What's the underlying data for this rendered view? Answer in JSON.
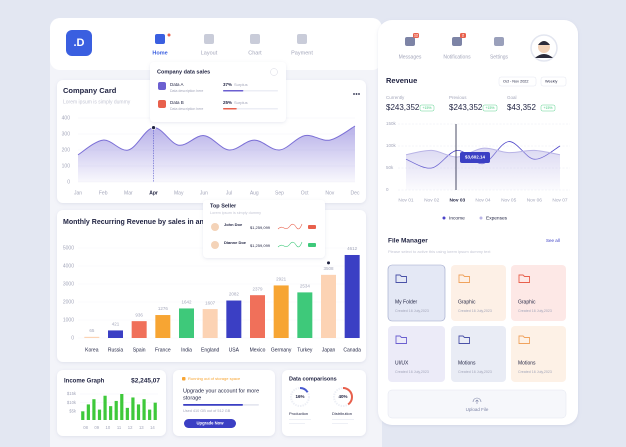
{
  "logo": ".D",
  "nav": [
    "Home",
    "Layout",
    "Chart",
    "Payment"
  ],
  "company_card": {
    "title": "Company Card",
    "subtitle": "Lorem ipsum is simply dummy",
    "chart": {
      "type": "area",
      "categories": [
        "Jan",
        "Feb",
        "Mar",
        "Apr",
        "May",
        "Jun",
        "Jul",
        "Aug",
        "Sep",
        "Oct",
        "Nov",
        "Dec"
      ],
      "values": [
        170,
        262,
        200,
        340,
        230,
        290,
        200,
        262,
        200,
        290,
        262,
        350
      ],
      "color": "#7b6fd6",
      "ylim": [
        0,
        400
      ],
      "yticks": [
        0,
        100,
        200,
        300,
        400
      ]
    }
  },
  "company_data_sales": {
    "title": "Company data sales",
    "items": [
      {
        "name": "Data A",
        "description": "Data description here",
        "value": 37,
        "value_label": "37%",
        "note": "Surplus",
        "color": "#6b5fd0"
      },
      {
        "name": "Data B",
        "description": "Data description here",
        "value": 25,
        "value_label": "25%",
        "note": "Surplus",
        "color": "#e8604c"
      }
    ]
  },
  "mrr": {
    "title": "Monthly Recurring Revenue by sales in any",
    "chart": {
      "type": "bar",
      "categories": [
        "Korea",
        "Russia",
        "Spain",
        "France",
        "India",
        "England",
        "USA",
        "Mexico",
        "Germany",
        "Turkey",
        "Japan",
        "Canada"
      ],
      "values": [
        65,
        421,
        936,
        1276,
        1642,
        1607,
        2082,
        2379,
        2921,
        2534,
        3508,
        4612
      ],
      "colors": [
        "#fcd3b4",
        "#3b3fc4",
        "#f0705a",
        "#f7a533",
        "#3ec97a",
        "#fcd3b4",
        "#3b3fc4",
        "#f0705a",
        "#f7a533",
        "#3ec97a",
        "#fcd3b4",
        "#3b3fc4"
      ],
      "ylim": [
        0,
        5000
      ],
      "yticks": [
        0,
        1000,
        2000,
        3000,
        4000,
        5000
      ]
    }
  },
  "top_seller": {
    "title": "Top Seller",
    "subtitle": "Lorem ipsum is simply dummy",
    "sellers": [
      {
        "name": "John Doe",
        "amount": "$1,259,099"
      },
      {
        "name": "Dianne Doe",
        "amount": "$1,259,099"
      }
    ]
  },
  "income_graph": {
    "title": "Income Graph",
    "total": "$2,245,07",
    "chart": {
      "type": "bar",
      "categories": [
        "08",
        null,
        "09",
        null,
        "10",
        null,
        "11",
        null,
        "12",
        null,
        "13",
        null,
        "14",
        null
      ],
      "values": [
        5000,
        9000,
        12000,
        6000,
        14000,
        8000,
        11000,
        15000,
        7000,
        13000,
        9000,
        12000,
        6000,
        10000
      ],
      "color": "#3ec93a",
      "ylim": [
        0,
        15000
      ],
      "yticks": [
        {
          "value": 5000,
          "label": "$5k"
        },
        {
          "value": 10000,
          "label": "$10k"
        },
        {
          "value": 15000,
          "label": "$15k"
        }
      ]
    }
  },
  "storage": {
    "warning": "Running out of storage space",
    "title_lines": [
      "Upgrade your account for more",
      "storage"
    ],
    "used": "Used 410 GB out of 512 GB",
    "button": "Upgrade Now"
  },
  "data_comparisons": {
    "title": "Data comparisons",
    "chart": {
      "type": "donut",
      "categories": [
        "Production",
        "Distribution"
      ],
      "values": [
        16,
        40
      ],
      "value_labels": [
        "16%",
        "40%"
      ],
      "colors": [
        "#4a5bd0",
        "#e8604c"
      ]
    }
  },
  "header": {
    "icons": [
      "Messages",
      "Notifications",
      "Settings"
    ],
    "badges": [
      "12",
      "2"
    ]
  },
  "revenue": {
    "title": "Revenue",
    "range": "Oct - Nov 2022",
    "period": "Weekly",
    "stats": [
      {
        "label": "Currently",
        "value": "$243,352",
        "change": "+15%"
      },
      {
        "label": "Previous",
        "value": "$243,352",
        "change": "+15%"
      },
      {
        "label": "Goal",
        "value": "$43,352",
        "change": "+15%"
      }
    ],
    "chart": {
      "type": "line",
      "categories": [
        "Nov 01",
        "Nov 02",
        "Nov 03",
        "Nov 04",
        "Nov 05",
        "Nov 06",
        "Nov 07"
      ],
      "series": [
        {
          "name": "Income",
          "color": "#4b42c8",
          "values": [
            70000,
            50000,
            90000,
            60000,
            110000,
            70000,
            100000
          ]
        },
        {
          "name": "Expenses",
          "color": "#b9b4e6",
          "values": [
            80000,
            90000,
            75000,
            95000,
            85000,
            90000,
            80000
          ]
        }
      ],
      "ylim": [
        0,
        150000
      ],
      "yticks": [
        0,
        {
          "value": 50000,
          "label": "50k"
        },
        {
          "value": 100000,
          "label": "100k"
        },
        {
          "value": 150000,
          "label": "150k"
        }
      ],
      "tooltip": "$3,602.14"
    }
  },
  "file_manager": {
    "title": "File Manager",
    "see_all": "See all",
    "subtitle": "Please select to active this using lorem ipsum dummy text",
    "files": [
      {
        "name": "My Folder",
        "date": "Created 16 July,2023"
      },
      {
        "name": "Graphic",
        "date": "Created 16 July,2023"
      },
      {
        "name": "Graphic",
        "date": "Created 16 July,2023"
      },
      {
        "name": "UI/UX",
        "date": "Created 16 July,2023"
      },
      {
        "name": "Motions",
        "date": "Created 16 July,2023"
      },
      {
        "name": "Motions",
        "date": "Created 16 July,2023"
      }
    ],
    "upload": "Upload File"
  }
}
